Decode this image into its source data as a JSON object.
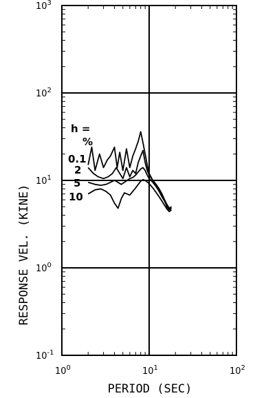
{
  "chart_data": {
    "type": "line",
    "title": "",
    "xlabel": "PERIOD (SEC)",
    "ylabel": "RESPONSE VEL. (KINE)",
    "xscale": "log",
    "yscale": "log",
    "xlim": [
      1,
      100
    ],
    "ylim": [
      0.1,
      1000
    ],
    "x_ticks": [
      {
        "value": 1,
        "label": "10",
        "exp": "0"
      },
      {
        "value": 10,
        "label": "10",
        "exp": "1"
      },
      {
        "value": 100,
        "label": "10",
        "exp": "2"
      }
    ],
    "y_ticks": [
      {
        "value": 0.1,
        "label": "10",
        "exp": "-1"
      },
      {
        "value": 1,
        "label": "10",
        "exp": "0"
      },
      {
        "value": 10,
        "label": "10",
        "exp": "1"
      },
      {
        "value": 100,
        "label": "10",
        "exp": "2"
      },
      {
        "value": 1000,
        "label": "10",
        "exp": "3"
      }
    ],
    "grid": "major decades",
    "annotations": {
      "h_label": "h =",
      "percent": "%",
      "damping_labels": [
        "0.1",
        "2",
        "5",
        "10"
      ]
    },
    "series": [
      {
        "label": "0.1",
        "x": [
          2.0,
          2.2,
          2.4,
          2.7,
          3.0,
          3.3,
          3.6,
          4.0,
          4.3,
          4.6,
          5.0,
          5.5,
          6.0,
          6.5,
          7.0,
          7.5,
          8.0,
          8.5,
          9.0,
          9.5,
          10.0,
          11,
          12,
          13,
          14,
          15,
          16,
          17,
          18
        ],
        "y": [
          15,
          24,
          13,
          20,
          14,
          17,
          19,
          24,
          14,
          21,
          13,
          23,
          14,
          19,
          23,
          28,
          36,
          27,
          20,
          15,
          12,
          10,
          9,
          8,
          7,
          6,
          5.3,
          4.8,
          5.0
        ]
      },
      {
        "label": "2",
        "x": [
          2.0,
          2.3,
          2.6,
          3.0,
          3.4,
          3.8,
          4.2,
          4.6,
          5.0,
          5.5,
          6.0,
          6.5,
          7.0,
          7.5,
          8.0,
          8.5,
          9.0,
          9.5,
          10.0,
          11,
          12,
          13,
          14,
          15,
          16,
          17,
          18
        ],
        "y": [
          14,
          12,
          11,
          10.5,
          11,
          12,
          14,
          12,
          10.5,
          14,
          11,
          13,
          12,
          16,
          19,
          22,
          16,
          13,
          11.5,
          10,
          9,
          8,
          7,
          6,
          5.2,
          4.7,
          4.9
        ]
      },
      {
        "label": "5",
        "x": [
          2.0,
          2.4,
          2.8,
          3.2,
          3.6,
          4.0,
          4.4,
          4.8,
          5.2,
          5.6,
          6.0,
          6.5,
          7.0,
          7.5,
          8.0,
          8.5,
          9.0,
          9.5,
          10.0,
          11,
          12,
          13,
          14,
          15,
          16,
          17,
          18
        ],
        "y": [
          9.5,
          9.0,
          8.8,
          9.0,
          9.5,
          10.0,
          9.5,
          9.0,
          9.5,
          10.0,
          10.5,
          10.8,
          11.5,
          12.5,
          13.5,
          14,
          13,
          11.5,
          10.5,
          9.5,
          8.5,
          7.5,
          6.5,
          5.8,
          5.0,
          4.6,
          4.8
        ]
      },
      {
        "label": "10",
        "x": [
          2.0,
          2.4,
          2.8,
          3.2,
          3.6,
          4.0,
          4.4,
          4.8,
          5.2,
          5.6,
          6.0,
          6.5,
          7.0,
          7.5,
          8.0,
          8.5,
          9.0,
          9.5,
          10.0,
          11,
          12,
          13,
          14,
          15,
          16,
          17,
          18
        ],
        "y": [
          7.0,
          7.8,
          8.0,
          7.5,
          6.8,
          5.5,
          4.8,
          6.2,
          7.2,
          7.0,
          6.8,
          7.5,
          8.2,
          9.0,
          9.8,
          10.2,
          10.0,
          9.6,
          9.2,
          8.2,
          7.3,
          6.5,
          5.8,
          5.2,
          4.7,
          4.4,
          4.6
        ]
      }
    ]
  }
}
